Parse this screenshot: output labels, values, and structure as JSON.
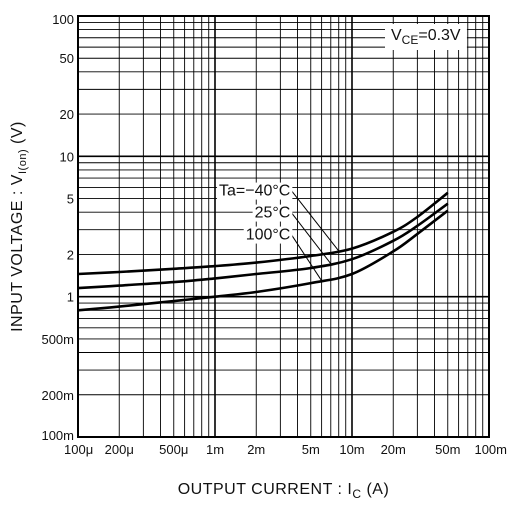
{
  "chart_data": {
    "type": "line",
    "title": "",
    "xlabel": "OUTPUT  CURRENT : I",
    "xlabel_sub": "C",
    "xlabel_unit": " (A)",
    "ylabel": "INPUT VOLTAGE : V",
    "ylabel_sub": "I(on)",
    "ylabel_unit": " (V)",
    "condition": {
      "text": "V",
      "sub": "CE",
      "rest": "=0.3V"
    },
    "x_scale": "log",
    "y_scale": "log",
    "xlim": [
      0.0001,
      0.1
    ],
    "ylim": [
      0.1,
      100
    ],
    "grid": true,
    "x_ticks": [
      {
        "value": 0.0001,
        "label": "100μ"
      },
      {
        "value": 0.0002,
        "label": "200μ"
      },
      {
        "value": 0.0005,
        "label": "500μ"
      },
      {
        "value": 0.001,
        "label": "1m"
      },
      {
        "value": 0.002,
        "label": "2m"
      },
      {
        "value": 0.005,
        "label": "5m"
      },
      {
        "value": 0.01,
        "label": "10m"
      },
      {
        "value": 0.02,
        "label": "20m"
      },
      {
        "value": 0.05,
        "label": "50m"
      },
      {
        "value": 0.1,
        "label": "100m"
      }
    ],
    "y_ticks": [
      {
        "value": 100,
        "label": "100"
      },
      {
        "value": 50,
        "label": "50"
      },
      {
        "value": 20,
        "label": "20"
      },
      {
        "value": 10,
        "label": "10"
      },
      {
        "value": 5,
        "label": "5"
      },
      {
        "value": 2,
        "label": "2"
      },
      {
        "value": 1,
        "label": "1"
      },
      {
        "value": 0.5,
        "label": "500m"
      },
      {
        "value": 0.2,
        "label": "200m"
      },
      {
        "value": 0.1,
        "label": "100m"
      }
    ],
    "series": [
      {
        "name": "Ta=−40°C",
        "x": [
          0.0001,
          0.0002,
          0.0005,
          0.001,
          0.002,
          0.005,
          0.01,
          0.02,
          0.03,
          0.05
        ],
        "y": [
          1.45,
          1.5,
          1.58,
          1.65,
          1.75,
          1.95,
          2.2,
          2.9,
          3.7,
          5.5
        ]
      },
      {
        "name": "25°C",
        "x": [
          0.0001,
          0.0002,
          0.0005,
          0.001,
          0.002,
          0.005,
          0.01,
          0.02,
          0.03,
          0.05
        ],
        "y": [
          1.15,
          1.2,
          1.27,
          1.35,
          1.45,
          1.6,
          1.85,
          2.5,
          3.2,
          4.6
        ]
      },
      {
        "name": "100°C",
        "x": [
          0.0001,
          0.0002,
          0.0005,
          0.001,
          0.002,
          0.005,
          0.01,
          0.02,
          0.03,
          0.05
        ],
        "y": [
          0.8,
          0.85,
          0.93,
          1.0,
          1.08,
          1.25,
          1.45,
          2.1,
          2.8,
          4.1
        ]
      }
    ]
  }
}
